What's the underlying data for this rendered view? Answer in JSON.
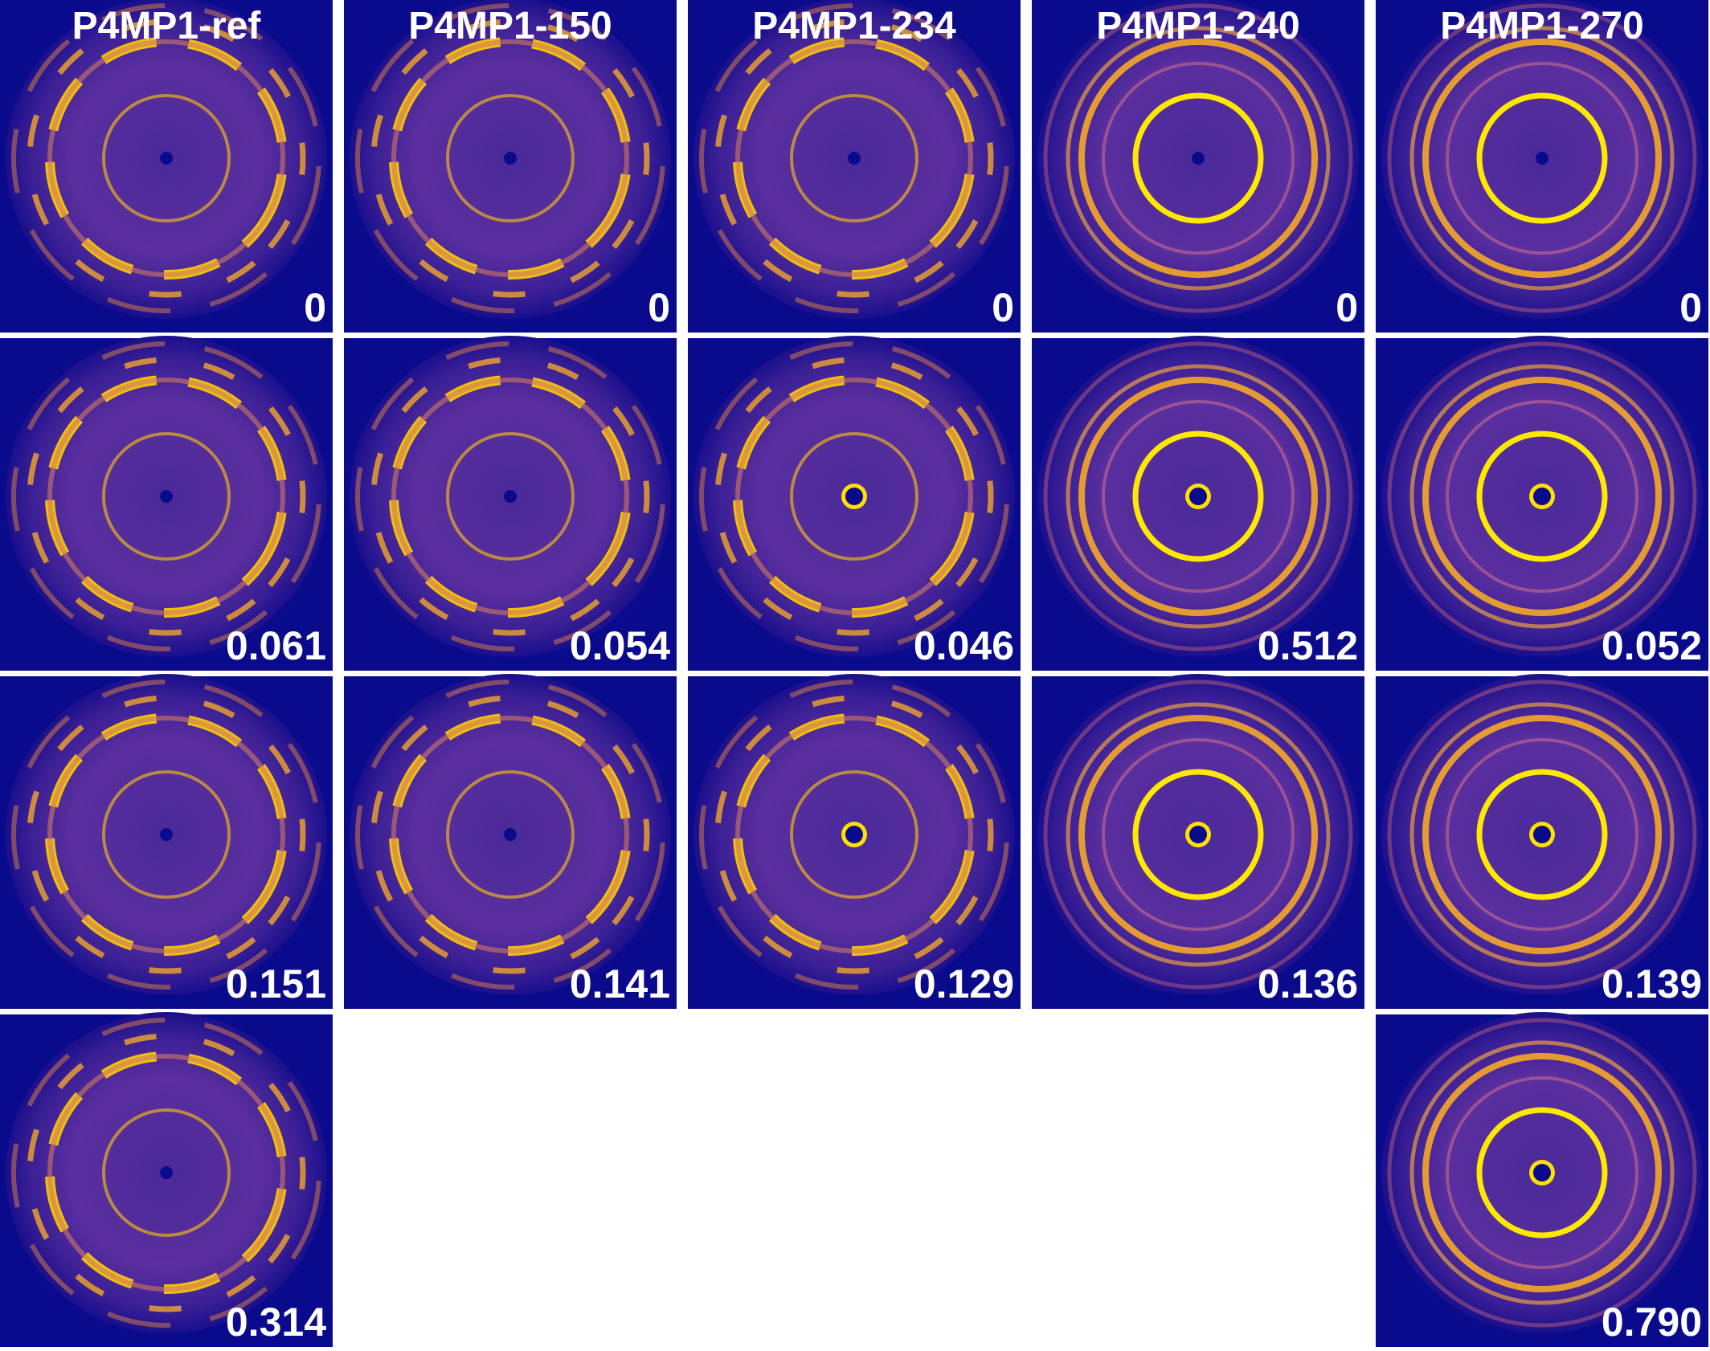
{
  "columns": [
    {
      "title": "P4MP1-ref",
      "panels": [
        "0",
        "0.061",
        "0.151",
        "0.314"
      ]
    },
    {
      "title": "P4MP1-150",
      "panels": [
        "0",
        "0.054",
        "0.141"
      ]
    },
    {
      "title": "P4MP1-234",
      "panels": [
        "0",
        "0.046",
        "0.129"
      ]
    },
    {
      "title": "P4MP1-240",
      "panels": [
        "0",
        "0.512",
        "0.136"
      ]
    },
    {
      "title": "P4MP1-270",
      "panels": [
        "0",
        "0.052",
        "0.139",
        "0.790"
      ]
    }
  ]
}
